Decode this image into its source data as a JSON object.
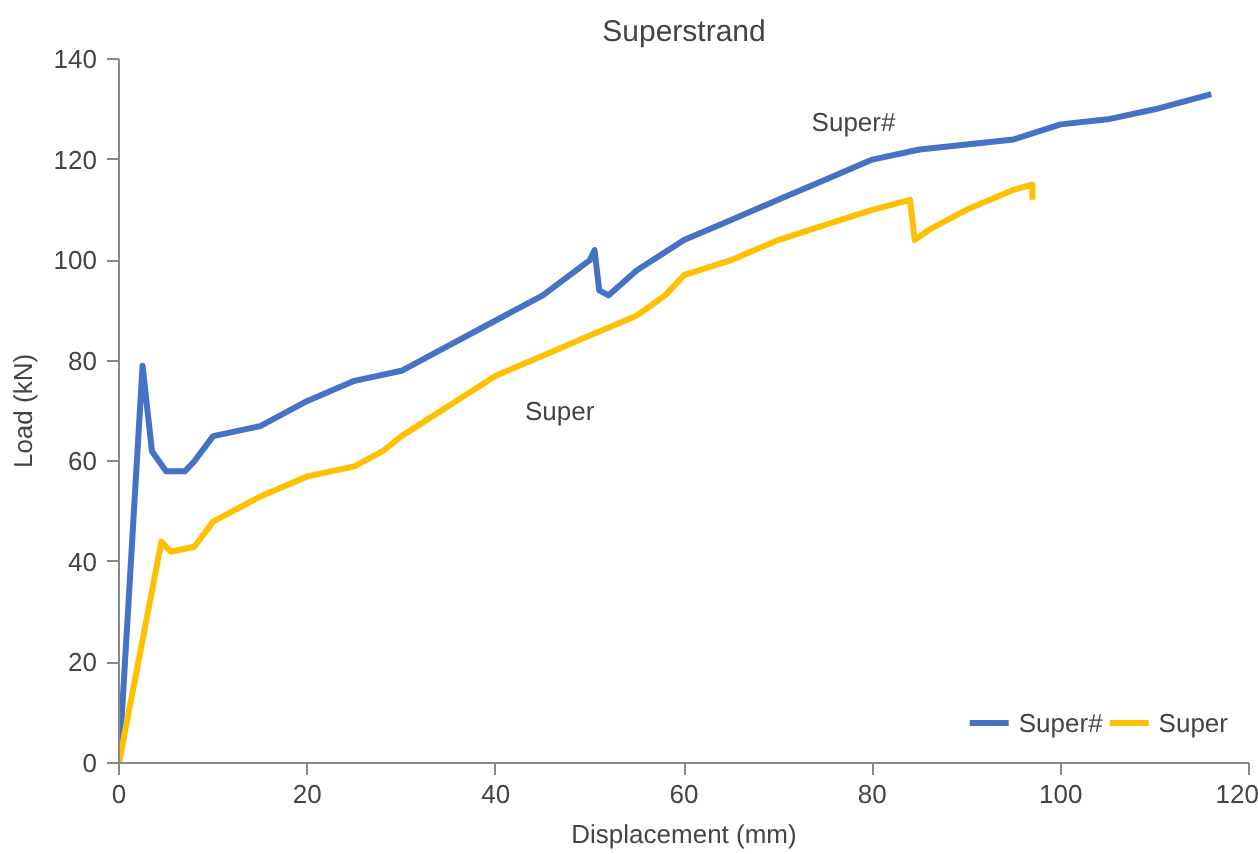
{
  "chart_data": {
    "type": "line",
    "title": "Superstrand",
    "xlabel": "Displacement (mm)",
    "ylabel": "Load (kN)",
    "xlim": [
      0,
      120
    ],
    "xticks": [
      0,
      20,
      40,
      60,
      80,
      100,
      120
    ],
    "ylim": [
      0,
      140
    ],
    "yticks": [
      0,
      20,
      40,
      60,
      80,
      100,
      120,
      140
    ],
    "grid": false,
    "legend": "bottom right",
    "series": [
      {
        "name": "Super#",
        "color": "#4472c4",
        "x": [
          0,
          2.5,
          3.5,
          5,
          7,
          8,
          10,
          15,
          20,
          25,
          30,
          35,
          40,
          45,
          50,
          50.5,
          51,
          52,
          55,
          60,
          65,
          70,
          75,
          80,
          85,
          90,
          95,
          100,
          105,
          110,
          116
        ],
        "values": [
          0,
          79,
          62,
          58,
          58,
          60,
          65,
          67,
          72,
          76,
          78,
          83,
          88,
          93,
          100,
          102,
          94,
          93,
          98,
          104,
          108,
          112,
          116,
          120,
          122,
          123,
          124,
          127,
          128,
          130,
          133
        ]
      },
      {
        "name": "Super",
        "color": "#ffc000",
        "x": [
          0,
          4.5,
          5.5,
          8,
          10,
          15,
          20,
          25,
          28,
          30,
          35,
          40,
          45,
          50,
          55,
          58,
          60,
          65,
          70,
          75,
          80,
          84,
          84.5,
          86,
          90,
          95,
          97,
          97
        ],
        "values": [
          0,
          44,
          42,
          43,
          48,
          53,
          57,
          59,
          62,
          65,
          71,
          77,
          81,
          85,
          89,
          93,
          97,
          100,
          104,
          107,
          110,
          112,
          104,
          106,
          110,
          114,
          115,
          112
        ]
      }
    ],
    "annotations": [
      "Super#",
      "Super"
    ]
  }
}
